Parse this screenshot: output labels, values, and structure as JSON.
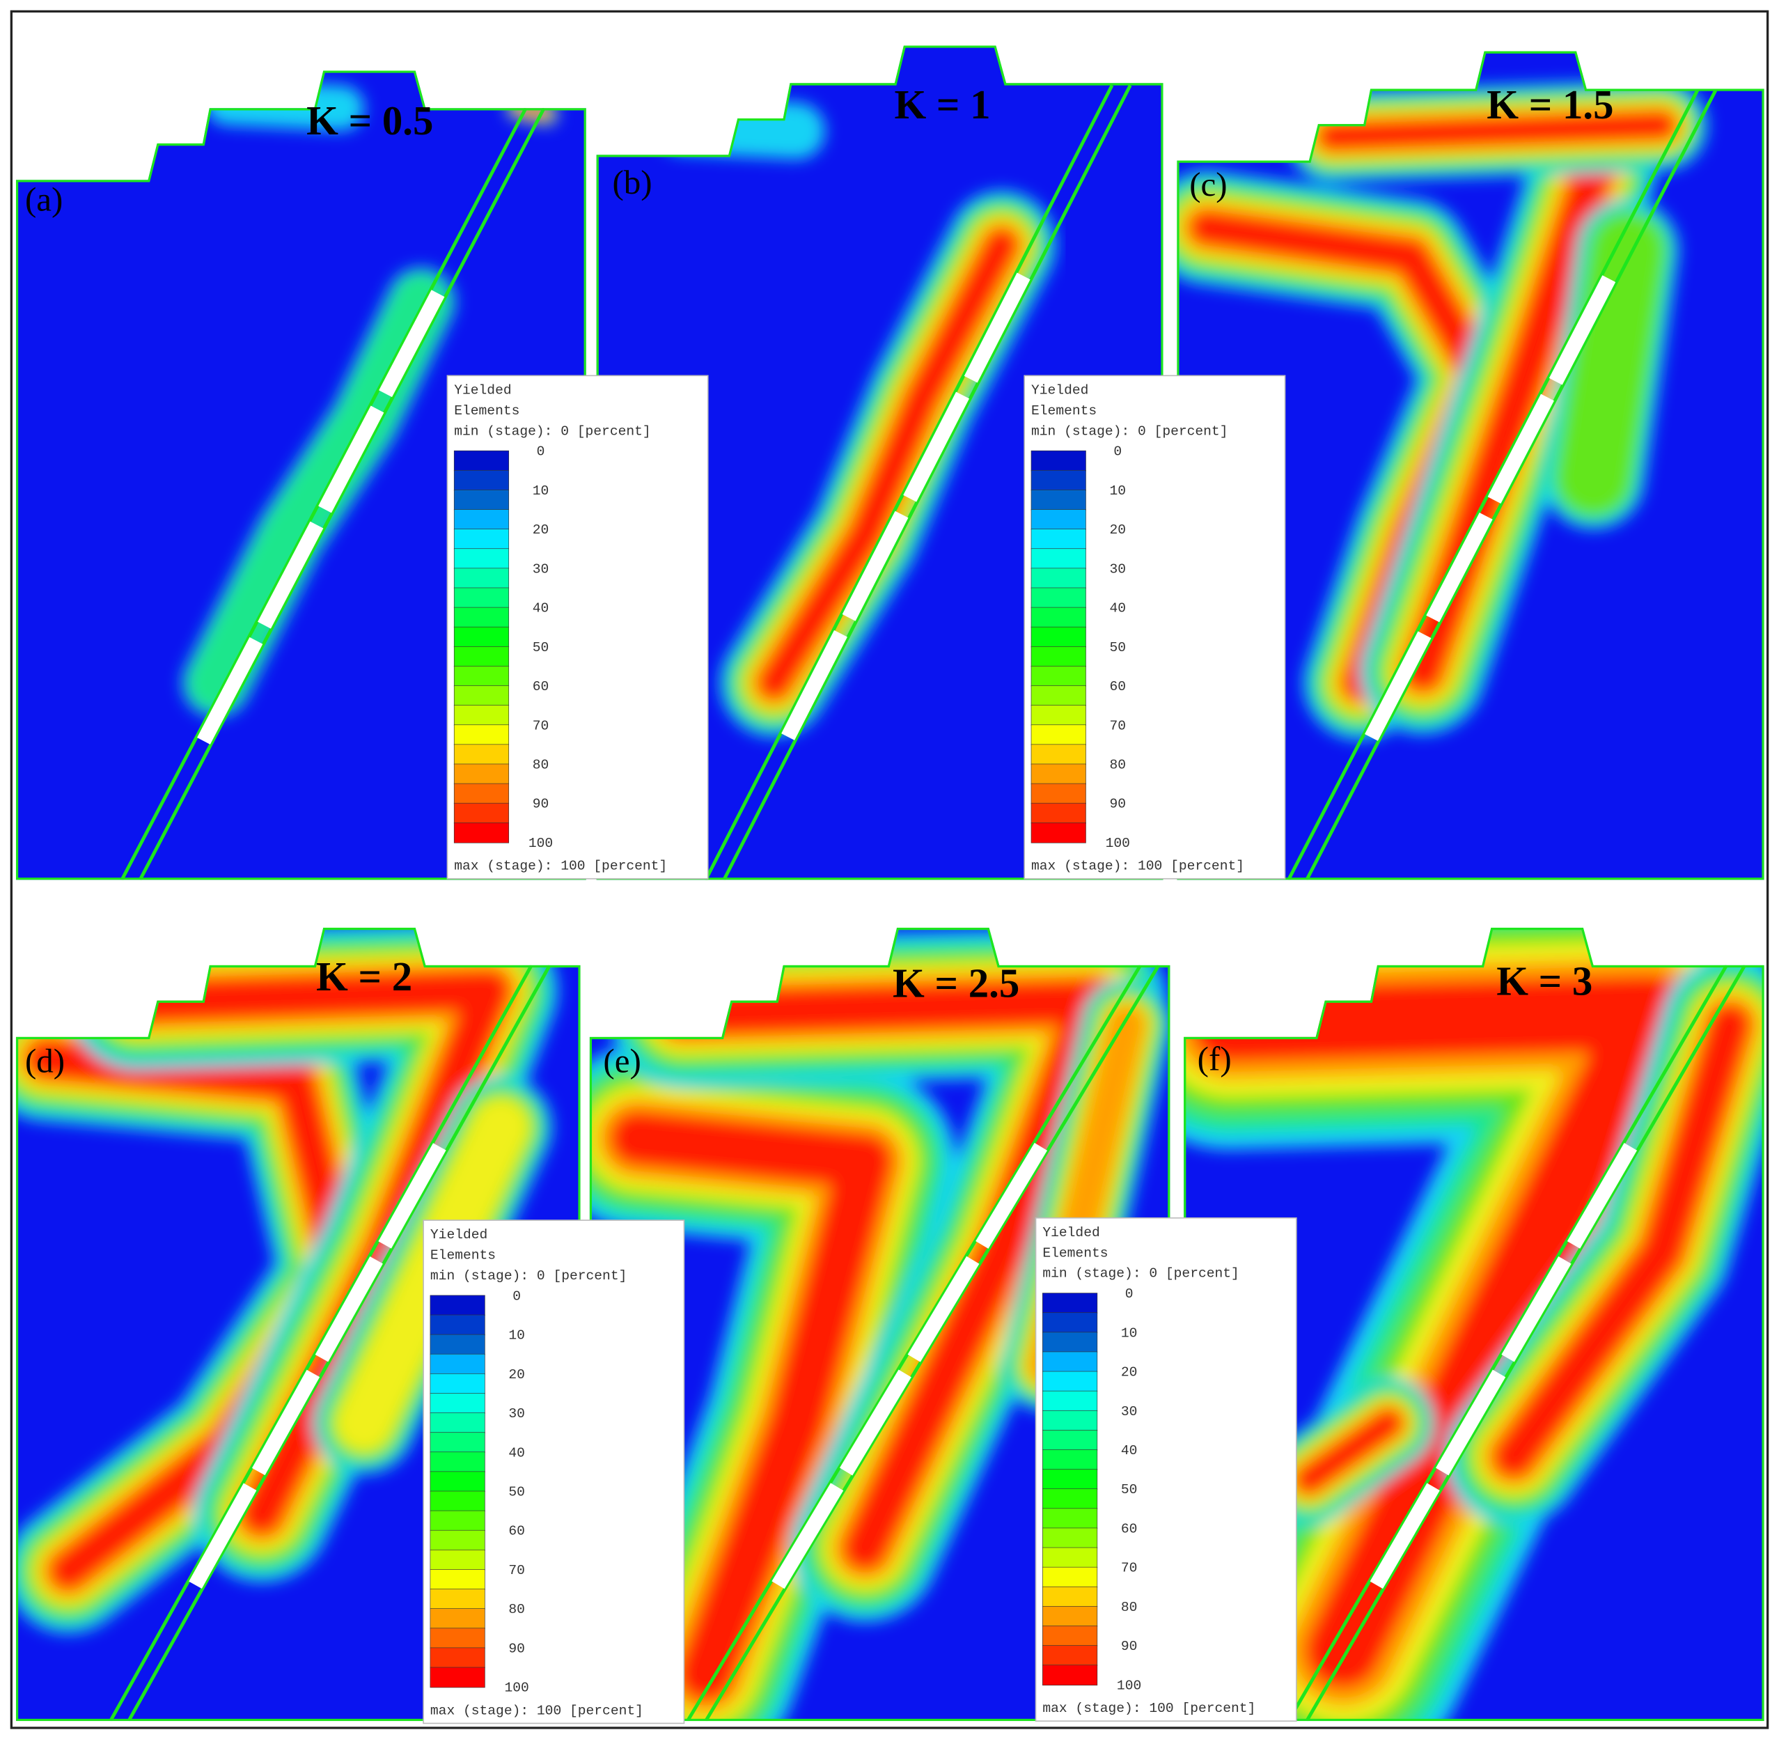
{
  "panels": [
    {
      "label": "(a)",
      "k": "K = 0.5"
    },
    {
      "label": "(b)",
      "k": "K = 1"
    },
    {
      "label": "(c)",
      "k": "K = 1.5"
    },
    {
      "label": "(d)",
      "k": "K = 2"
    },
    {
      "label": "(e)",
      "k": "K = 2.5"
    },
    {
      "label": "(f)",
      "k": "K = 3"
    }
  ],
  "legends": [
    {
      "title": [
        "Yielded",
        "Elements"
      ],
      "min": "min (stage): 0 [percent]",
      "max": "max (stage): 100 [percent]",
      "ticks": [
        0,
        10,
        20,
        30,
        40,
        50,
        60,
        70,
        80,
        90,
        100
      ]
    },
    {
      "title": [
        "Yielded",
        "Elements"
      ],
      "min": "min (stage): 0 [percent]",
      "max": "max (stage): 100 [percent]",
      "ticks": [
        0,
        10,
        20,
        30,
        40,
        50,
        60,
        70,
        80,
        90,
        100
      ]
    },
    {
      "title": [
        "Yielded",
        "Elements"
      ],
      "min": "min (stage): 0 [percent]",
      "max": "max (stage): 100 [percent]",
      "ticks": [
        0,
        10,
        20,
        30,
        40,
        50,
        60,
        70,
        80,
        90,
        100
      ]
    },
    {
      "title": [
        "Yielded",
        "Elements"
      ],
      "min": "min (stage): 0 [percent]",
      "max": "max (stage): 100 [percent]",
      "ticks": [
        0,
        10,
        20,
        30,
        40,
        50,
        60,
        70,
        80,
        90,
        100
      ]
    }
  ]
}
